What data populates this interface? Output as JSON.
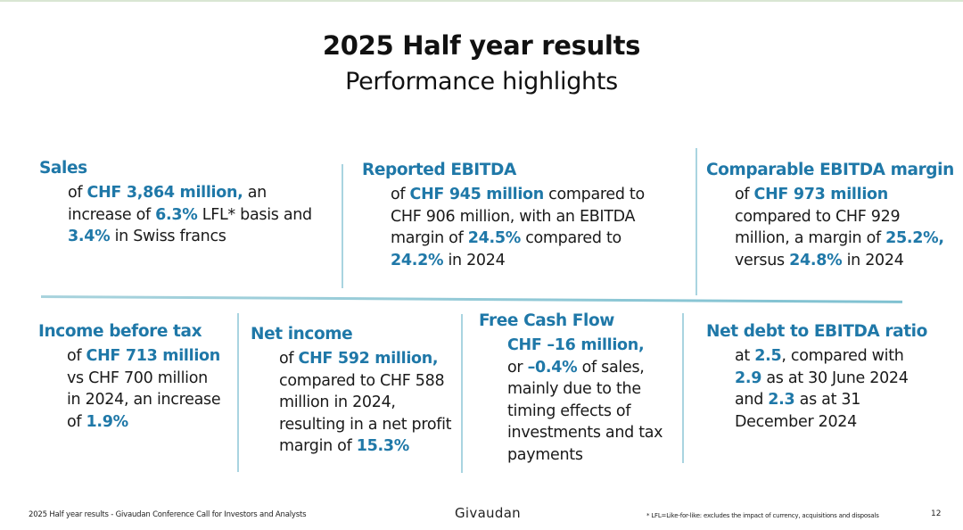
{
  "header": {
    "title": "2025 Half year results",
    "subtitle": "Performance highlights"
  },
  "colors": {
    "accent": "#1f78a8",
    "divider": "#a9d4e0",
    "text": "#1a1a1a"
  },
  "highlights": [
    {
      "heading": "Sales",
      "lines": [
        [
          {
            "t": "of "
          },
          {
            "t": "CHF 3,864 million,",
            "hl": true
          },
          {
            "t": " an"
          }
        ],
        [
          {
            "t": "increase of "
          },
          {
            "t": "6.3%",
            "hl": true
          },
          {
            "t": " LFL* basis and"
          }
        ],
        [
          {
            "t": "3.4%",
            "hl": true
          },
          {
            "t": " in Swiss francs"
          }
        ]
      ]
    },
    {
      "heading": "Reported EBITDA",
      "lines": [
        [
          {
            "t": "of "
          },
          {
            "t": "CHF 945 million",
            "hl": true
          },
          {
            "t": " compared to"
          }
        ],
        [
          {
            "t": "CHF 906 million, with an EBITDA"
          }
        ],
        [
          {
            "t": "margin of "
          },
          {
            "t": "24.5%",
            "hl": true
          },
          {
            "t": " compared to"
          }
        ],
        [
          {
            "t": "24.2%",
            "hl": true
          },
          {
            "t": " in 2024"
          }
        ]
      ]
    },
    {
      "heading": "Comparable EBITDA margin",
      "lines": [
        [
          {
            "t": "of "
          },
          {
            "t": "CHF 973 million",
            "hl": true
          }
        ],
        [
          {
            "t": "compared to CHF 929"
          }
        ],
        [
          {
            "t": "million, a margin of "
          },
          {
            "t": "25.2%,",
            "hl": true
          }
        ],
        [
          {
            "t": "versus "
          },
          {
            "t": "24.8%",
            "hl": true
          },
          {
            "t": " in 2024"
          }
        ]
      ]
    },
    {
      "heading": "Income before tax",
      "lines": [
        [
          {
            "t": "of "
          },
          {
            "t": "CHF 713 million",
            "hl": true
          }
        ],
        [
          {
            "t": "vs CHF 700 million"
          }
        ],
        [
          {
            "t": "in 2024, an increase"
          }
        ],
        [
          {
            "t": "of "
          },
          {
            "t": "1.9%",
            "hl": true
          }
        ]
      ]
    },
    {
      "heading": "Net income",
      "lines": [
        [
          {
            "t": "of "
          },
          {
            "t": "CHF 592 million,",
            "hl": true
          }
        ],
        [
          {
            "t": "compared to CHF 588"
          }
        ],
        [
          {
            "t": "million in 2024,"
          }
        ],
        [
          {
            "t": "resulting in a net profit"
          }
        ],
        [
          {
            "t": "margin of "
          },
          {
            "t": "15.3%",
            "hl": true
          }
        ]
      ]
    },
    {
      "heading": "Free Cash Flow",
      "lines": [
        [
          {
            "t": "CHF –16 million,",
            "hl": true
          }
        ],
        [
          {
            "t": "or "
          },
          {
            "t": "–0.4%",
            "hl": true
          },
          {
            "t": " of sales,"
          }
        ],
        [
          {
            "t": "mainly due to the"
          }
        ],
        [
          {
            "t": "timing effects of"
          }
        ],
        [
          {
            "t": "investments and tax"
          }
        ],
        [
          {
            "t": "payments"
          }
        ]
      ]
    },
    {
      "heading": "Net debt to EBITDA ratio",
      "lines": [
        [
          {
            "t": "at "
          },
          {
            "t": "2.5",
            "hl": true
          },
          {
            "t": ", compared with"
          }
        ],
        [
          {
            "t": "2.9",
            "hl": true
          },
          {
            "t": " as at 30 June 2024"
          }
        ],
        [
          {
            "t": "and "
          },
          {
            "t": "2.3",
            "hl": true
          },
          {
            "t": " as at 31"
          }
        ],
        [
          {
            "t": "December 2024"
          }
        ]
      ]
    }
  ],
  "footer": {
    "left": "2025 Half year results - Givaudan Conference Call for Investors and Analysts",
    "logo": "Givaudan",
    "note": "* LFL=Like-for-like: excludes the impact of currency, acquisitions and disposals",
    "page": "12"
  }
}
